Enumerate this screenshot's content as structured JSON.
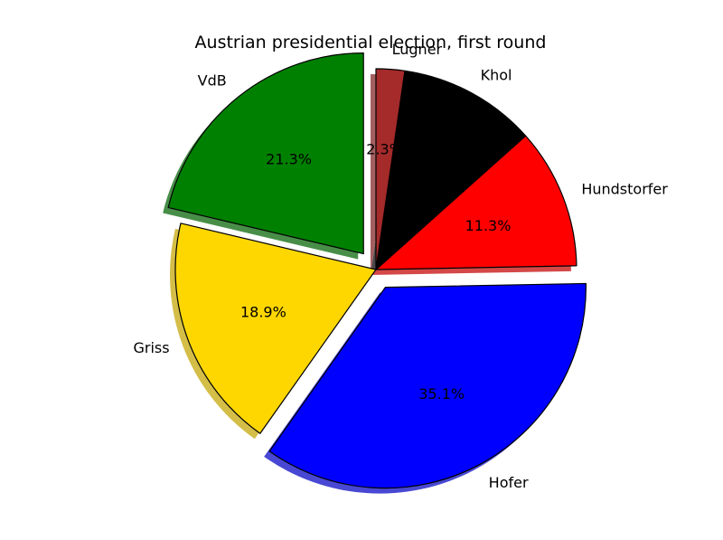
{
  "chart_data": {
    "type": "pie",
    "title": "Austrian presidential election, first round",
    "slices": [
      {
        "label": "VdB",
        "value": 21.3,
        "pct_label": "21.3%",
        "color": "#008000",
        "exploded": true
      },
      {
        "label": "Griss",
        "value": 18.9,
        "pct_label": "18.9%",
        "color": "#ffd700",
        "exploded": false
      },
      {
        "label": "Hofer",
        "value": 35.1,
        "pct_label": "35.1%",
        "color": "#0000ff",
        "exploded": true
      },
      {
        "label": "Hundstorfer",
        "value": 11.3,
        "pct_label": "11.3%",
        "color": "#ff0000",
        "exploded": false
      },
      {
        "label": "Khol",
        "value": 11.1,
        "pct_label": "",
        "color": "#000000",
        "exploded": false
      },
      {
        "label": "Lugner",
        "value": 2.3,
        "pct_label": "2.3%",
        "color": "#a52a2a",
        "exploded": false
      }
    ],
    "start_angle_deg": 90,
    "direction": "counterclockwise",
    "shadow": true
  }
}
